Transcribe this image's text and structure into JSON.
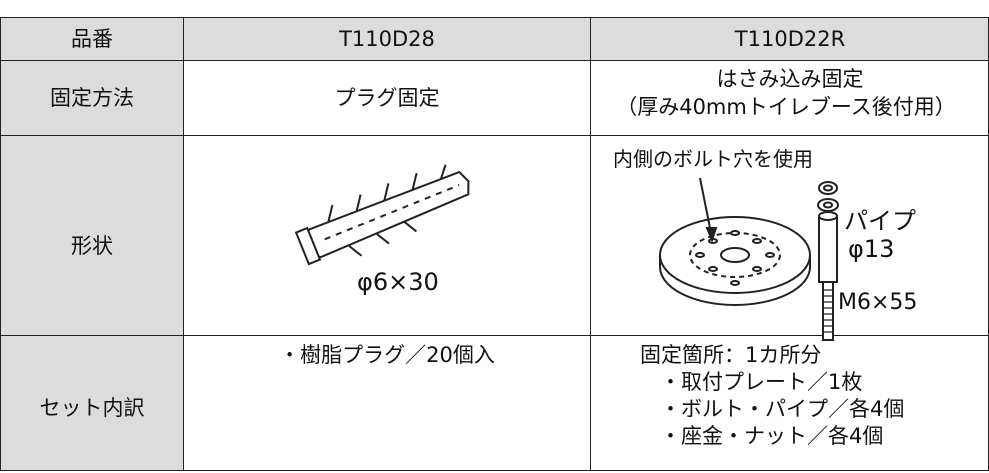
{
  "table": {
    "header": [
      "品番",
      "T110D28",
      "T110D22R"
    ],
    "rows": [
      {
        "label": "固定方法",
        "left": [
          "プラグ固定"
        ],
        "right": [
          "はさみ込み固定",
          "（厚み40mmトイレブース後付用）"
        ]
      },
      {
        "label": "形状",
        "left": [
          "φ6×30"
        ],
        "right": [
          "内側のボルト穴を使用",
          "パイプ",
          "φ13",
          "M6×55"
        ]
      },
      {
        "label": "セット内訳",
        "left": [
          "・樹脂プラグ／20個入"
        ],
        "right": [
          "固定箇所：1カ所分",
          "・取付プレート／1枚",
          "・ボルト・パイプ／各4個",
          "・座金・ナット／各4個"
        ]
      }
    ]
  }
}
